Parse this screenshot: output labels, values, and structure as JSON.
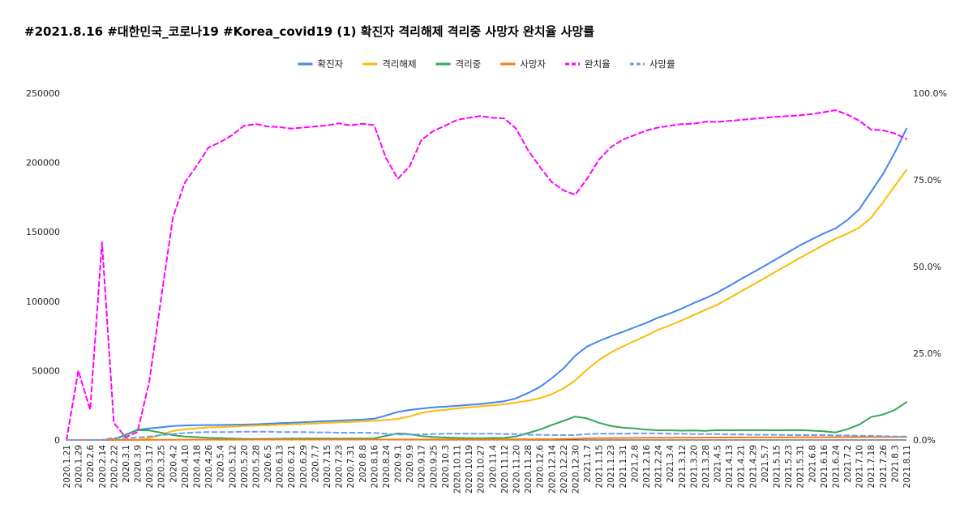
{
  "chart_data": {
    "type": "line",
    "title": "#2021.8.16 #대한민국_코로나19 #Korea_covid19 (1) 확진자 격리해제 격리중 사망자 완치율 사망률",
    "legend_position": "top-center",
    "grid": false,
    "x_tick_labels": [
      "2020.1.21",
      "2020.1.29",
      "2020.2.6",
      "2020.2.14",
      "2020.2.22",
      "2020.3.1",
      "2020.3.9",
      "2020.3.17",
      "2020.3.25",
      "2020.4.2",
      "2020.4.10",
      "2020.4.18",
      "2020.4.26",
      "2020.5.4",
      "2020.5.12",
      "2020.5.20",
      "2020.5.28",
      "2020.6.5",
      "2020.6.13",
      "2020.6.21",
      "2020.6.29",
      "2020.7.7",
      "2020.7.15",
      "2020.7.23",
      "2020.7.31",
      "2020.8.8",
      "2020.8.16",
      "2020.8.24",
      "2020.9.1",
      "2020.9.9",
      "2020.9.17",
      "2020.9.25",
      "2020.10.3",
      "2020.10.11",
      "2020.10.19",
      "2020.10.27",
      "2020.11.4",
      "2020.11.12",
      "2020.11.20",
      "2020.11.28",
      "2020.12.6",
      "2020.12.14",
      "2020.12.22",
      "2020.12.30",
      "2021.1.7",
      "2021.1.15",
      "2021.1.23",
      "2021.1.31",
      "2021.2.8",
      "2021.2.16",
      "2021.2.24",
      "2021.3.4",
      "2021.3.12",
      "2021.3.20",
      "2021.3.28",
      "2021.4.5",
      "2021.4.13",
      "2021.4.21",
      "2021.4.29",
      "2021.5.7",
      "2021.5.15",
      "2021.5.23",
      "2021.5.31",
      "2021.6.8",
      "2021.6.16",
      "2021.6.24",
      "2021.7.2",
      "2021.7.10",
      "2021.7.18",
      "2021.7.26",
      "2021.8.3",
      "2021.8.11"
    ],
    "y_left": {
      "min": 0,
      "max": 250000,
      "ticks": [
        "0",
        "50000",
        "100000",
        "150000",
        "200000",
        "250000"
      ]
    },
    "y_right": {
      "min": 0,
      "max": 100,
      "ticks": [
        "0.0%",
        "25.0%",
        "50.0%",
        "75.0%",
        "100.0%"
      ]
    },
    "series": [
      {
        "name": "확진자",
        "axis": "left",
        "color": "#4285f4",
        "dash": false,
        "values": [
          1,
          15,
          23,
          28,
          346,
          3736,
          7382,
          8320,
          9137,
          10062,
          10450,
          10653,
          10752,
          10801,
          10962,
          11110,
          11344,
          11668,
          12085,
          12421,
          12800,
          13181,
          13612,
          13938,
          14336,
          14660,
          15318,
          17665,
          20182,
          21588,
          22657,
          23455,
          24027,
          24606,
          25275,
          25955,
          26925,
          27942,
          30017,
          33824,
          38161,
          44364,
          51460,
          60740,
          67358,
          71241,
          74692,
          77850,
          81185,
          84325,
          88120,
          91240,
          94686,
          98665,
          102141,
          106230,
          111004,
          115926,
          120673,
          125519,
          130381,
          135344,
          140340,
          144637,
          148876,
          152545,
          158549,
          166162,
          178846,
          191531,
          206965,
          224467
        ]
      },
      {
        "name": "격리해제",
        "axis": "left",
        "color": "#fbbc04",
        "dash": false,
        "values": [
          0,
          3,
          2,
          16,
          17,
          30,
          166,
          1401,
          3730,
          6463,
          7757,
          8411,
          9059,
          9283,
          9632,
          10066,
          10340,
          10552,
          10897,
          11151,
          11537,
          11914,
          12348,
          12721,
          13007,
          13368,
          13901,
          14361,
          15198,
          17023,
          19590,
          20891,
          21779,
          22717,
          23493,
          24229,
          25029,
          25899,
          26962,
          28292,
          30087,
          32992,
          37074,
          42953,
          50690,
          57526,
          63049,
          67383,
          71322,
          75179,
          79369,
          82662,
          86220,
          89985,
          93810,
          97402,
          102093,
          107009,
          111776,
          116583,
          121575,
          126385,
          131373,
          135993,
          140656,
          145102,
          148771,
          153023,
          160133,
          171066,
          182977,
          194730
        ]
      },
      {
        "name": "격리중",
        "axis": "left",
        "color": "#34a853",
        "dash": false,
        "values": [
          1,
          12,
          21,
          12,
          327,
          3699,
          7204,
          6838,
          5281,
          3462,
          2523,
          2044,
          1522,
          1261,
          1080,
          789,
          730,
          836,
          904,
          986,
          974,
          982,
          966,
          916,
          1028,
          994,
          1112,
          2993,
          4662,
          4223,
          2745,
          2150,
          1786,
          1436,
          1279,
          1244,
          1408,
          1527,
          2567,
          4986,
          7486,
          10748,
          13741,
          16889,
          15522,
          12390,
          10172,
          8871,
          8334,
          7480,
          7015,
          6951,
          6705,
          6811,
          6557,
          7068,
          7030,
          7072,
          7039,
          7071,
          6999,
          7077,
          7105,
          6715,
          6229,
          5435,
          7746,
          11028,
          16551,
          18269,
          21583,
          27280
        ]
      },
      {
        "name": "사망자",
        "axis": "left",
        "color": "#fa7b17",
        "dash": false,
        "values": [
          0,
          0,
          0,
          0,
          2,
          17,
          50,
          81,
          126,
          169,
          208,
          230,
          244,
          252,
          256,
          262,
          269,
          276,
          279,
          284,
          289,
          290,
          293,
          297,
          301,
          305,
          306,
          310,
          324,
          336,
          367,
          401,
          425,
          441,
          453,
          474,
          479,
          487,
          505,
          523,
          562,
          612,
          698,
          879,
          1146,
          1283,
          1349,
          1400,
          1529,
          1591,
          1640,
          1661,
          1677,
          1713,
          1749,
          1771,
          1782,
          1816,
          1858,
          1888,
          1901,
          1919,
          1981,
          1989,
          2013,
          2026,
          2033,
          2045,
          2075,
          2110,
          2140,
          2175
        ]
      },
      {
        "name": "완치율",
        "axis": "right",
        "color": "#ff00ff",
        "dash": true,
        "values": [
          0,
          20,
          8.7,
          57,
          4.9,
          0.8,
          2.3,
          16.8,
          40.8,
          64.2,
          74.2,
          79,
          84.3,
          85.9,
          87.9,
          90.6,
          91.1,
          90.4,
          90.2,
          89.8,
          90.1,
          90.4,
          90.7,
          91.3,
          90.7,
          91.2,
          90.8,
          81.3,
          75.3,
          78.9,
          86.5,
          89.1,
          90.6,
          92.3,
          92.9,
          93.4,
          92.9,
          92.7,
          89.8,
          83.6,
          78.8,
          74.4,
          72,
          70.7,
          75.3,
          80.8,
          84.4,
          86.6,
          87.9,
          89.2,
          90.1,
          90.6,
          91.1,
          91.2,
          91.8,
          91.7,
          92,
          92.3,
          92.6,
          92.9,
          93.2,
          93.4,
          93.6,
          94,
          94.5,
          95.1,
          93.8,
          92.1,
          89.5,
          89.3,
          88.4,
          86.8
        ]
      },
      {
        "name": "사망률",
        "axis": "right",
        "color": "#6d9eeb",
        "dash": true,
        "values": [
          0,
          0,
          0,
          0,
          0.6,
          0.5,
          0.7,
          1,
          1.4,
          1.7,
          2,
          2.2,
          2.3,
          2.3,
          2.3,
          2.4,
          2.4,
          2.4,
          2.3,
          2.3,
          2.3,
          2.2,
          2.2,
          2.1,
          2.1,
          2.1,
          2,
          1.8,
          1.6,
          1.6,
          1.6,
          1.7,
          1.8,
          1.8,
          1.8,
          1.8,
          1.8,
          1.7,
          1.7,
          1.5,
          1.5,
          1.4,
          1.4,
          1.4,
          1.7,
          1.8,
          1.8,
          1.8,
          1.9,
          1.9,
          1.9,
          1.8,
          1.8,
          1.7,
          1.7,
          1.7,
          1.6,
          1.6,
          1.5,
          1.5,
          1.5,
          1.4,
          1.4,
          1.4,
          1.4,
          1.3,
          1.3,
          1.2,
          1.2,
          1.1,
          1,
          1
        ]
      }
    ]
  }
}
